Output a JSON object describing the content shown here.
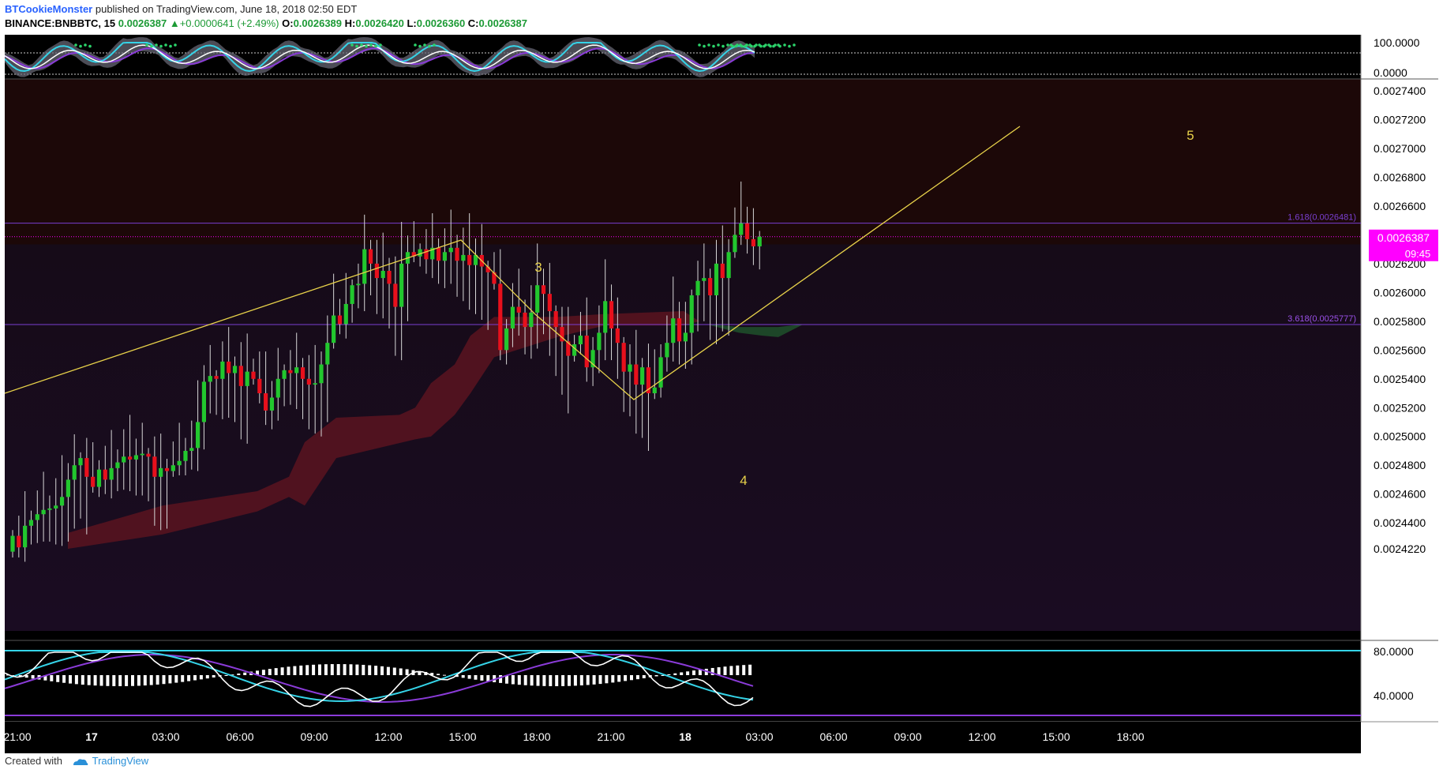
{
  "header": {
    "author": "BTCookieMonster",
    "published": "published on TradingView.com, June 18, 2018 02:50 EDT",
    "symbol": "BINANCE:BNBBTC, 15",
    "last": "0.0026387",
    "change_arrow": "▲",
    "change": "+0.0000641 (+2.49%)",
    "o_label": "O:",
    "o": "0.0026389",
    "h_label": "H:",
    "h": "0.0026420",
    "l_label": "L:",
    "l": "0.0026360",
    "c_label": "C:",
    "c": "0.0026387"
  },
  "colors": {
    "up": "#22c72e",
    "down": "#e8101c",
    "price_tag": "#ff00ff",
    "fib": "#7a3fd0",
    "wave": "#e8d24a",
    "cloud_red": "#5a1420",
    "cloud_green": "#1e4d2a",
    "panel_bg": "#000000",
    "main_bg_top": "#1c0808",
    "main_bg_bottom": "#180c1c"
  },
  "top_indicator": {
    "ticks": [
      "100.0000",
      "0.0000"
    ]
  },
  "price_axis": {
    "ticks": [
      "0.0027400",
      "0.0027200",
      "0.0027000",
      "0.0026800",
      "0.0026600",
      "0.0026200",
      "0.0026000",
      "0.0025800",
      "0.0025600",
      "0.0025400",
      "0.0025200",
      "0.0025000",
      "0.0024800",
      "0.0024600",
      "0.0024400",
      "0.0024220"
    ],
    "current_price": "0.0026387",
    "countdown": "09:45"
  },
  "fib_levels": [
    {
      "label": "1.618(0.0026481)",
      "price": 0.0026481
    },
    {
      "label": "3.618(0.0025777)",
      "price": 0.0025777
    }
  ],
  "wave_labels": [
    "3",
    "4",
    "5"
  ],
  "bottom_indicator": {
    "ticks": [
      "80.0000",
      "40.0000"
    ]
  },
  "time_axis": {
    "labels": [
      "21:00",
      "17",
      "03:00",
      "06:00",
      "09:00",
      "12:00",
      "15:00",
      "18:00",
      "21:00",
      "18",
      "03:00",
      "06:00",
      "09:00",
      "12:00",
      "15:00",
      "18:00"
    ],
    "bold": [
      "17",
      "18"
    ]
  },
  "candles": [
    [
      0.00242,
      0.002431
    ],
    [
      0.002431,
      0.002423
    ],
    [
      0.002423,
      0.002438
    ],
    [
      0.002438,
      0.002442
    ],
    [
      0.002442,
      0.002446
    ],
    [
      0.002446,
      0.002449
    ],
    [
      0.002449,
      0.00245
    ],
    [
      0.00245,
      0.002452
    ],
    [
      0.002452,
      0.002458
    ],
    [
      0.002458,
      0.00247
    ],
    [
      0.00247,
      0.00248
    ],
    [
      0.00248,
      0.002485
    ],
    [
      0.002485,
      0.002472
    ],
    [
      0.002472,
      0.002465
    ],
    [
      0.002465,
      0.002477
    ],
    [
      0.002477,
      0.00247
    ],
    [
      0.00247,
      0.002478
    ],
    [
      0.002478,
      0.002482
    ],
    [
      0.002482,
      0.002486
    ],
    [
      0.002486,
      0.002484
    ],
    [
      0.002484,
      0.002487
    ],
    [
      0.002487,
      0.002488
    ],
    [
      0.002488,
      0.002486
    ],
    [
      0.002486,
      0.002472
    ],
    [
      0.002472,
      0.002478
    ],
    [
      0.002478,
      0.002476
    ],
    [
      0.002476,
      0.00248
    ],
    [
      0.00248,
      0.002483
    ],
    [
      0.002483,
      0.00249
    ],
    [
      0.00249,
      0.002492
    ],
    [
      0.002492,
      0.00251
    ],
    [
      0.00251,
      0.002538
    ],
    [
      0.002538,
      0.002542
    ],
    [
      0.002542,
      0.00254
    ],
    [
      0.00254,
      0.002552
    ],
    [
      0.002552,
      0.002544
    ],
    [
      0.002544,
      0.002549
    ],
    [
      0.002549,
      0.002535
    ],
    [
      0.002535,
      0.002545
    ],
    [
      0.002545,
      0.00254
    ],
    [
      0.00254,
      0.00253
    ],
    [
      0.00253,
      0.002518
    ],
    [
      0.002518,
      0.002527
    ],
    [
      0.002527,
      0.00254
    ],
    [
      0.00254,
      0.002546
    ],
    [
      0.002546,
      0.002544
    ],
    [
      0.002544,
      0.002548
    ],
    [
      0.002548,
      0.00254
    ],
    [
      0.00254,
      0.002536
    ],
    [
      0.002536,
      0.002537
    ],
    [
      0.002537,
      0.00255
    ],
    [
      0.00255,
      0.002565
    ],
    [
      0.002565,
      0.002584
    ],
    [
      0.002584,
      0.002578
    ],
    [
      0.002578,
      0.002592
    ],
    [
      0.002592,
      0.002605
    ],
    [
      0.002605,
      0.002606
    ],
    [
      0.002606,
      0.00263
    ],
    [
      0.00263,
      0.00262
    ],
    [
      0.00262,
      0.00261
    ],
    [
      0.00261,
      0.002615
    ],
    [
      0.002615,
      0.002606
    ],
    [
      0.002606,
      0.00259
    ],
    [
      0.00259,
      0.00262
    ],
    [
      0.00262,
      0.002628
    ],
    [
      0.002628,
      0.002625
    ],
    [
      0.002625,
      0.00263
    ],
    [
      0.00263,
      0.002623
    ],
    [
      0.002623,
      0.002631
    ],
    [
      0.002631,
      0.002622
    ],
    [
      0.002622,
      0.002628
    ],
    [
      0.002628,
      0.002631
    ],
    [
      0.002631,
      0.002622
    ],
    [
      0.002622,
      0.002626
    ],
    [
      0.002626,
      0.002619
    ],
    [
      0.002619,
      0.002626
    ],
    [
      0.002626,
      0.002618
    ],
    [
      0.002618,
      0.002614
    ],
    [
      0.002614,
      0.002606
    ],
    [
      0.002606,
      0.00256
    ],
    [
      0.00256,
      0.002575
    ],
    [
      0.002575,
      0.00259
    ],
    [
      0.00259,
      0.002586
    ],
    [
      0.002586,
      0.002576
    ],
    [
      0.002576,
      0.002586
    ],
    [
      0.002586,
      0.002605
    ],
    [
      0.002605,
      0.002599
    ],
    [
      0.002599,
      0.002587
    ],
    [
      0.002587,
      0.002576
    ],
    [
      0.002576,
      0.002566
    ],
    [
      0.002566,
      0.002556
    ],
    [
      0.002556,
      0.002564
    ],
    [
      0.002564,
      0.00257
    ],
    [
      0.00257,
      0.002548
    ],
    [
      0.002548,
      0.00256
    ],
    [
      0.00256,
      0.002572
    ],
    [
      0.002572,
      0.002594
    ],
    [
      0.002594,
      0.002575
    ],
    [
      0.002575,
      0.002565
    ],
    [
      0.002565,
      0.002545
    ],
    [
      0.002545,
      0.00255
    ],
    [
      0.00255,
      0.002536
    ],
    [
      0.002536,
      0.002548
    ],
    [
      0.002548,
      0.00253
    ],
    [
      0.00253,
      0.002534
    ],
    [
      0.002534,
      0.002555
    ],
    [
      0.002555,
      0.002565
    ],
    [
      0.002565,
      0.002582
    ],
    [
      0.002582,
      0.002566
    ],
    [
      0.002566,
      0.002572
    ],
    [
      0.002572,
      0.002598
    ],
    [
      0.002598,
      0.002608
    ],
    [
      0.002608,
      0.00261
    ],
    [
      0.00261,
      0.002598
    ],
    [
      0.002598,
      0.00262
    ],
    [
      0.00262,
      0.00261
    ],
    [
      0.00261,
      0.002628
    ],
    [
      0.002628,
      0.00264
    ],
    [
      0.00264,
      0.002648
    ],
    [
      0.002648,
      0.002637
    ],
    [
      0.002637,
      0.002632
    ],
    [
      0.002632,
      0.0026387
    ]
  ],
  "footer": {
    "created_with": "Created with",
    "brand": "TradingView"
  }
}
